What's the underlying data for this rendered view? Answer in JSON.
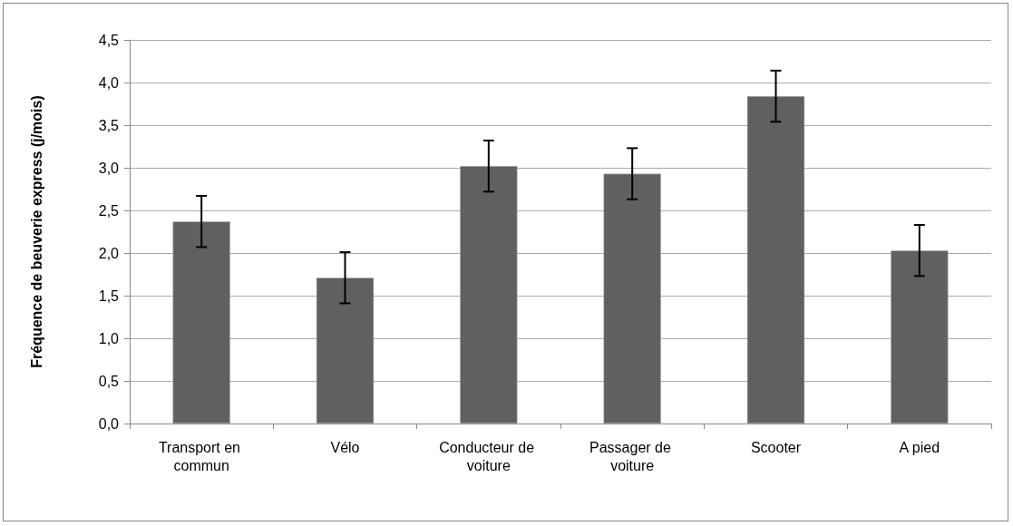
{
  "chart_data": {
    "type": "bar",
    "ylabel": "Fréquence de beuverie express (j/mois)",
    "categories": [
      "Transport en commun",
      "Vélo",
      "Conducteur de voiture",
      "Passager de voiture",
      "Scooter",
      "A pied"
    ],
    "values": [
      2.37,
      1.71,
      3.02,
      2.93,
      3.84,
      2.03
    ],
    "errors": [
      0.3,
      0.3,
      0.3,
      0.3,
      0.3,
      0.3
    ],
    "color": "#606060",
    "ylim": [
      0,
      4.5
    ],
    "yticks": [
      {
        "value": 0,
        "label": "0,0"
      },
      {
        "value": 0.5,
        "label": "0,5"
      },
      {
        "value": 1,
        "label": "1,0"
      },
      {
        "value": 1.5,
        "label": "1,5"
      },
      {
        "value": 2,
        "label": "2,0"
      },
      {
        "value": 2.5,
        "label": "2,5"
      },
      {
        "value": 3,
        "label": "3,0"
      },
      {
        "value": 3.5,
        "label": "3,5"
      },
      {
        "value": 4,
        "label": "4,0"
      },
      {
        "value": 4.5,
        "label": "4,5"
      }
    ],
    "grid": "y"
  }
}
